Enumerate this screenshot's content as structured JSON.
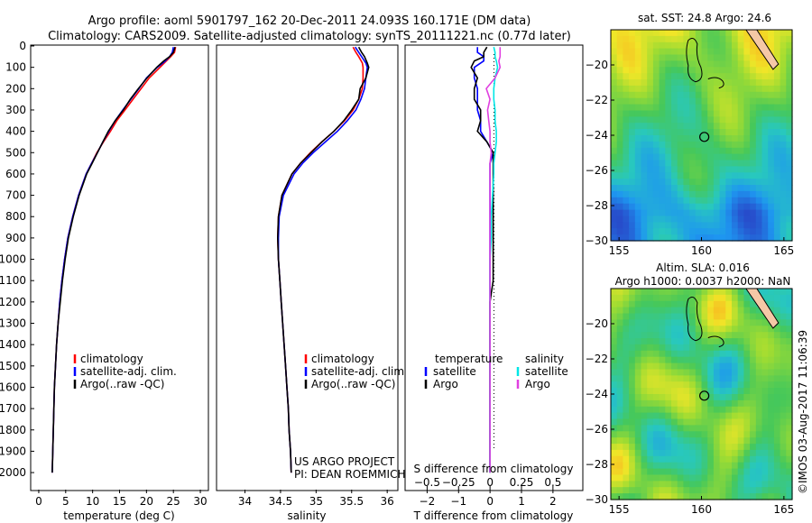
{
  "header": {
    "line1": "Argo profile: aoml 5901797_162 20-Dec-2011 24.093S 160.171E (DM data)",
    "line2": "Climatology: CARS2009. Satellite-adjusted climatology: synTS_20111221.nc (0.77d later)"
  },
  "credit": {
    "project": "US ARGO PROJECT",
    "pi": "PI: DEAN ROEMMICH",
    "stamp": "©IMOS 03-Aug-2017 11:06:39"
  },
  "map_titles": {
    "sst": "sat. SST: 24.8 Argo: 24.6",
    "sla1": "Altim. SLA: 0.016",
    "sla2": "Argo h1000: 0.0037 h2000: NaN"
  },
  "colors": {
    "climatology": "#ff0000",
    "satellite": "#0000ff",
    "argo": "#000000",
    "sat_salinity": "#00e6e6",
    "argo_salinity": "#e040e0"
  },
  "chart_data": [
    {
      "type": "line",
      "panel": "temperature",
      "xlabel": "temperature (deg C)",
      "ylim": [
        0,
        2080
      ],
      "xlim": [
        -1.5,
        31.5
      ],
      "xticks": [
        0,
        5,
        10,
        15,
        20,
        25,
        30
      ],
      "yticks": [
        0,
        100,
        200,
        300,
        400,
        500,
        600,
        700,
        800,
        900,
        1000,
        1100,
        1200,
        1300,
        1400,
        1500,
        1600,
        1700,
        1800,
        1900,
        2000
      ],
      "legend": [
        "climatology",
        "satellite-adj. clim.",
        "Argo(..raw -QC)"
      ],
      "depth": [
        5,
        30,
        50,
        70,
        100,
        150,
        200,
        250,
        300,
        350,
        400,
        450,
        500,
        550,
        600,
        700,
        800,
        900,
        1000,
        1100,
        1200,
        1300,
        1400,
        1500,
        1600,
        1700,
        1800,
        1900,
        2000
      ],
      "series": [
        {
          "name": "climatology",
          "values": [
            25.4,
            25.2,
            24.5,
            23.7,
            22.5,
            20.5,
            19.0,
            17.5,
            16.0,
            14.5,
            13.3,
            12.0,
            10.8,
            9.8,
            8.8,
            7.4,
            6.3,
            5.4,
            4.8,
            4.3,
            3.9,
            3.6,
            3.3,
            3.1,
            2.9,
            2.8,
            2.7,
            2.6,
            2.5
          ]
        },
        {
          "name": "satellite-adj. clim.",
          "values": [
            25.0,
            24.8,
            24.3,
            23.5,
            22.0,
            20.0,
            18.6,
            17.1,
            15.6,
            14.2,
            13.0,
            11.9,
            10.9,
            9.8,
            8.8,
            7.4,
            6.3,
            5.4,
            4.8,
            4.3,
            3.9,
            3.6,
            3.3,
            3.1,
            2.9,
            2.8,
            2.7,
            2.6,
            2.5
          ]
        },
        {
          "name": "Argo(..raw -QC)",
          "values": [
            25.3,
            25.0,
            24.3,
            23.2,
            21.9,
            20.1,
            18.5,
            17.0,
            15.7,
            14.2,
            12.9,
            11.9,
            10.9,
            9.9,
            8.9,
            7.5,
            6.4,
            5.5,
            4.9,
            4.4,
            4.0,
            3.6,
            3.3,
            3.1,
            2.9,
            2.8,
            2.7,
            2.6,
            2.5
          ]
        }
      ]
    },
    {
      "type": "line",
      "panel": "salinity",
      "xlabel": "salinity",
      "ylim": [
        0,
        2080
      ],
      "xlim": [
        33.6,
        36.15
      ],
      "xticks": [
        34,
        34.5,
        35,
        35.5,
        36
      ],
      "legend": [
        "climatology",
        "satellite-adj. clim.",
        "Argo(..raw -QC)"
      ],
      "depth": [
        5,
        30,
        50,
        80,
        100,
        150,
        200,
        250,
        300,
        350,
        400,
        450,
        500,
        550,
        600,
        700,
        800,
        900,
        1000,
        1100,
        1200,
        1300,
        1400,
        1500,
        1600,
        1700,
        1800,
        1900,
        2000
      ],
      "series": [
        {
          "name": "climatology",
          "values": [
            35.52,
            35.56,
            35.6,
            35.65,
            35.66,
            35.66,
            35.65,
            35.6,
            35.52,
            35.4,
            35.25,
            35.08,
            34.92,
            34.78,
            34.66,
            34.52,
            34.47,
            34.46,
            34.47,
            34.49,
            34.51,
            34.53,
            34.55,
            34.57,
            34.59,
            34.61,
            34.62,
            34.64,
            34.65
          ]
        },
        {
          "name": "satellite-adj. clim.",
          "values": [
            35.55,
            35.6,
            35.64,
            35.7,
            35.72,
            35.7,
            35.68,
            35.63,
            35.56,
            35.44,
            35.3,
            35.13,
            34.96,
            34.81,
            34.69,
            34.54,
            34.48,
            34.47,
            34.47,
            34.49,
            34.51,
            34.53,
            34.55,
            34.57,
            34.59,
            34.61,
            34.62,
            34.64,
            34.65
          ]
        },
        {
          "name": "Argo(..raw -QC)",
          "values": [
            35.6,
            35.64,
            35.68,
            35.72,
            35.74,
            35.7,
            35.62,
            35.6,
            35.5,
            35.39,
            35.25,
            35.08,
            34.93,
            34.78,
            34.66,
            34.52,
            34.47,
            34.46,
            34.47,
            34.49,
            34.51,
            34.53,
            34.55,
            34.57,
            34.59,
            34.61,
            34.62,
            34.64,
            34.65
          ]
        }
      ]
    },
    {
      "type": "line",
      "panel": "differences",
      "xlabel_top": "S difference from climatology",
      "xlabel_bottom": "T difference from climatology",
      "ylim": [
        0,
        2080
      ],
      "xlim_T": [
        -2.7,
        2.95
      ],
      "xticks_T": [
        -2,
        -1,
        0,
        1,
        2
      ],
      "xticks_S": [
        -0.5,
        -0.25,
        0,
        0.25,
        0.5
      ],
      "xtick_labels_S": [
        "−0.5",
        "−0.25",
        "0",
        "0.25",
        "0.5"
      ],
      "xtick_labels_T": [
        "−2",
        "−1",
        "0",
        "1",
        "2"
      ],
      "legend_titles": [
        "temperature",
        "salinity"
      ],
      "legend": [
        "satellite",
        "Argo",
        "satellite",
        "Argo"
      ],
      "depth": [
        5,
        30,
        50,
        70,
        100,
        150,
        200,
        250,
        300,
        350,
        400,
        450,
        500,
        550,
        600,
        700,
        800,
        900,
        1000,
        1100,
        1200,
        1300,
        1400,
        1500,
        1600,
        1700,
        1800,
        1900,
        2000
      ],
      "series": [
        {
          "name": "temperature satellite",
          "values": [
            -0.4,
            -0.4,
            -0.2,
            -0.2,
            -0.5,
            -0.5,
            -0.4,
            -0.4,
            -0.4,
            -0.3,
            -0.3,
            -0.1,
            0.1,
            0.0,
            0.0,
            0.0,
            0.0,
            0.0,
            0.0,
            0.0,
            0.0,
            0.0,
            0.0,
            0.0,
            0.0,
            0.0,
            0.0,
            0.0,
            0.0
          ]
        },
        {
          "name": "temperature Argo",
          "values": [
            -0.1,
            -0.2,
            -0.2,
            -0.5,
            -0.6,
            -0.4,
            -0.5,
            -0.5,
            -0.3,
            -0.3,
            -0.4,
            -0.1,
            0.1,
            0.1,
            0.1,
            0.1,
            0.1,
            0.1,
            0.1,
            0.1,
            0.0,
            0.0,
            0.0,
            0.0,
            0.0,
            0.0,
            0.0,
            0.0,
            0.0
          ]
        },
        {
          "name": "salinity satellite",
          "values": [
            0.03,
            0.04,
            0.04,
            0.05,
            0.06,
            0.04,
            0.03,
            0.03,
            0.04,
            0.04,
            0.05,
            0.05,
            0.04,
            0.03,
            0.03,
            0.02,
            0.01,
            0.01,
            0.0,
            0.0,
            0.0,
            0.0,
            0.0,
            0.0,
            0.0,
            0.0,
            0.0,
            0.0,
            0.0
          ]
        },
        {
          "name": "salinity Argo",
          "values": [
            0.08,
            0.08,
            0.08,
            0.07,
            0.08,
            0.04,
            -0.03,
            0.0,
            -0.02,
            -0.01,
            0.0,
            0.0,
            0.01,
            0.0,
            0.0,
            0.0,
            0.0,
            0.0,
            0.0,
            0.0,
            0.0,
            0.0,
            0.0,
            0.0,
            0.0,
            0.0,
            0.0,
            0.0,
            0.0
          ]
        }
      ]
    },
    {
      "type": "heatmap",
      "panel": "sst-map",
      "xlim": [
        154.5,
        165.5
      ],
      "ylim": [
        -30,
        -18
      ],
      "xticks": [
        155,
        160,
        165
      ],
      "yticks": [
        -20,
        -22,
        -24,
        -26,
        -28,
        -30
      ],
      "float_position": [
        160.171,
        -24.093
      ]
    },
    {
      "type": "heatmap",
      "panel": "sla-map",
      "xlim": [
        154.5,
        165.5
      ],
      "ylim": [
        -30,
        -18
      ],
      "xticks": [
        155,
        160,
        165
      ],
      "yticks": [
        -20,
        -22,
        -24,
        -26,
        -28,
        -30
      ],
      "float_position": [
        160.171,
        -24.093
      ]
    }
  ]
}
